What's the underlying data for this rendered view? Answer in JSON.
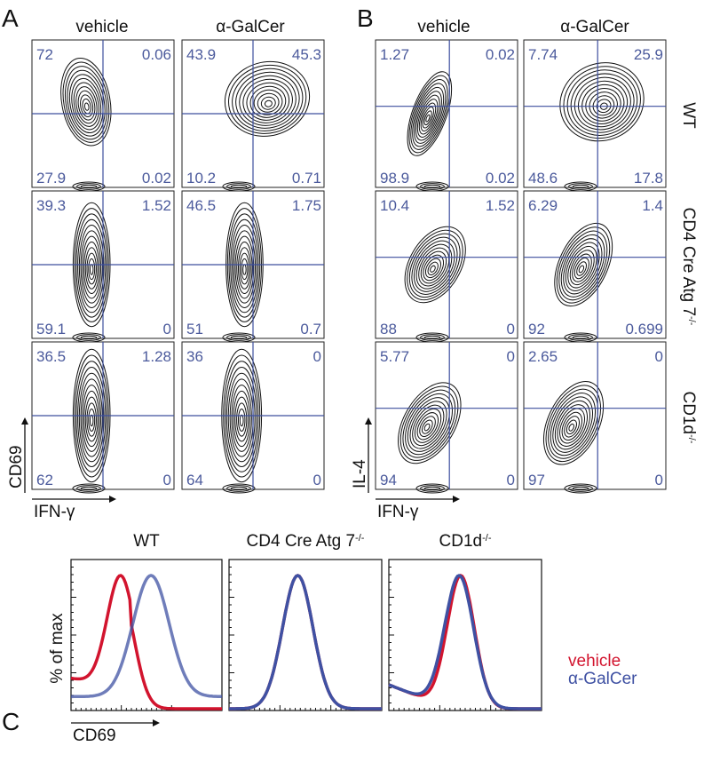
{
  "panels": [
    {
      "label": "A",
      "columns": [
        "vehicle",
        "α-GalCer"
      ],
      "y_axis": "CD69",
      "x_axis": "IFN-γ",
      "plots": [
        [
          [
            "72",
            "0.06",
            "27.9",
            "0.02"
          ],
          [
            "43.9",
            "45.3",
            "10.2",
            "0.71"
          ]
        ],
        [
          [
            "39.3",
            "1.52",
            "59.1",
            "0"
          ],
          [
            "46.5",
            "1.75",
            "51",
            "0.7"
          ]
        ],
        [
          [
            "36.5",
            "1.28",
            "62",
            "0"
          ],
          [
            "36",
            "0",
            "64",
            "0"
          ]
        ]
      ]
    },
    {
      "label": "B",
      "columns": [
        "vehicle",
        "α-GalCer"
      ],
      "y_axis": "IL-4",
      "x_axis": "IFN-γ",
      "plots": [
        [
          [
            "1.27",
            "0.02",
            "98.9",
            "0.02"
          ],
          [
            "7.74",
            "25.9",
            "48.6",
            "17.8"
          ]
        ],
        [
          [
            "10.4",
            "1.52",
            "88",
            "0"
          ],
          [
            "6.29",
            "1.4",
            "92",
            "0.699"
          ]
        ],
        [
          [
            "5.77",
            "0",
            "94",
            "0"
          ],
          [
            "2.65",
            "0",
            "97",
            "0"
          ]
        ]
      ]
    }
  ],
  "row_labels": [
    {
      "text": "WT"
    },
    {
      "text": "CD4 Cre Atg 7",
      "sup": "-/-"
    },
    {
      "text": "CD1d",
      "sup": "-/-"
    }
  ],
  "histograms": {
    "label": "C",
    "y_axis": "% of max",
    "x_axis": "CD69",
    "panels": [
      {
        "title": "WT"
      },
      {
        "title": "CD4 Cre Atg 7",
        "sup": "-/-"
      },
      {
        "title": "CD1d",
        "sup": "-/-"
      }
    ],
    "legend": [
      {
        "name": "vehicle",
        "color": "#d2142e"
      },
      {
        "name": "α-GalCer",
        "color": "#3f51a3"
      }
    ]
  }
}
